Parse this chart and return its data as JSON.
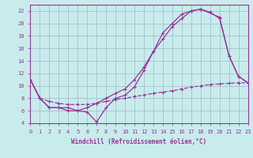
{
  "bg_color": "#c8ecec",
  "grid_color": "#a0b8c8",
  "line_color": "#993399",
  "xlabel": "Windchill (Refroidissement éolien,°C)",
  "xlim": [
    0,
    23
  ],
  "ylim": [
    4,
    23
  ],
  "yticks": [
    4,
    6,
    8,
    10,
    12,
    14,
    16,
    18,
    20,
    22
  ],
  "xticks": [
    0,
    1,
    2,
    3,
    4,
    5,
    6,
    7,
    8,
    9,
    10,
    11,
    12,
    13,
    14,
    15,
    16,
    17,
    18,
    19,
    20,
    21,
    22,
    23
  ],
  "line1_x": [
    0,
    1,
    2,
    3,
    4,
    5,
    6,
    7,
    8,
    9,
    10,
    11,
    12,
    13,
    14,
    15,
    16,
    17,
    18,
    20,
    21,
    22,
    23
  ],
  "line1_y": [
    11,
    8,
    6.5,
    6.5,
    6.5,
    6.0,
    5.8,
    4.2,
    6.5,
    8.0,
    8.5,
    9.8,
    12.5,
    15.5,
    18.5,
    20.0,
    21.5,
    22.0,
    22.3,
    21.0,
    14.8,
    11.5,
    10.5
  ],
  "line2_x": [
    0,
    1,
    2,
    3,
    4,
    5,
    6,
    7,
    8,
    9,
    10,
    11,
    12,
    13,
    14,
    15,
    16,
    17,
    18,
    19,
    20,
    21,
    22,
    23
  ],
  "line2_y": [
    11,
    8,
    6.5,
    6.5,
    6.0,
    6.0,
    6.5,
    7.2,
    8.0,
    8.8,
    9.5,
    11.0,
    13.0,
    15.5,
    17.5,
    19.5,
    20.8,
    22.0,
    22.3,
    21.8,
    20.8,
    14.8,
    11.5,
    10.5
  ],
  "line3_x": [
    0,
    1,
    2,
    3,
    4,
    5,
    6,
    7,
    8,
    9,
    10,
    11,
    12,
    13,
    14,
    15,
    16,
    17,
    18,
    19,
    20,
    21,
    22,
    23
  ],
  "line3_y": [
    11,
    8,
    7.5,
    7.2,
    7.0,
    7.0,
    7.0,
    7.2,
    7.5,
    7.8,
    8.0,
    8.3,
    8.5,
    8.8,
    9.0,
    9.2,
    9.5,
    9.8,
    10.0,
    10.2,
    10.3,
    10.4,
    10.5,
    10.5
  ]
}
